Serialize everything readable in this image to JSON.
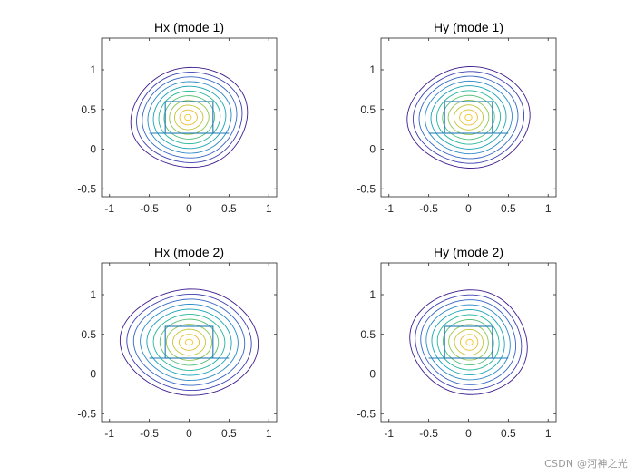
{
  "watermark": "CSDN @河神之光",
  "colors": {
    "axis": "#262626",
    "geometry": "#1f77b4",
    "levels": [
      "#3d1c8c",
      "#3b3fb0",
      "#3566c4",
      "#2a88c8",
      "#1aa3b8",
      "#21b59a",
      "#54c077",
      "#8fc650",
      "#c4c43a",
      "#e8bd2e",
      "#f2c92a"
    ]
  },
  "chart_data": [
    {
      "type": "contour",
      "title": "Hx (mode 1)",
      "xlim": [
        -1.1,
        1.1
      ],
      "ylim": [
        -0.6,
        1.4
      ],
      "xticks": [
        -1,
        -0.5,
        0,
        0.5,
        1
      ],
      "yticks": [
        -0.5,
        0,
        0.5,
        1
      ],
      "xtick_labels": [
        "-1",
        "-0.5",
        "0",
        "0.5",
        "1"
      ],
      "ytick_labels": [
        "-0.5",
        "0",
        "0.5",
        "1"
      ],
      "center": [
        0,
        0.4
      ],
      "outer_radius_x": 0.73,
      "outer_radius_y": 0.63,
      "levels": 11,
      "core_tilt": 0.12,
      "waveguide": {
        "substrate_y": 0.2,
        "substrate_x": [
          -0.5,
          0.5
        ],
        "core_x": [
          -0.3,
          0.3
        ],
        "core_y": [
          0.2,
          0.6
        ]
      }
    },
    {
      "type": "contour",
      "title": "Hy (mode 1)",
      "xlim": [
        -1.1,
        1.1
      ],
      "ylim": [
        -0.6,
        1.4
      ],
      "xticks": [
        -1,
        -0.5,
        0,
        0.5,
        1
      ],
      "yticks": [
        -0.5,
        0,
        0.5,
        1
      ],
      "xtick_labels": [
        "-1",
        "-0.5",
        "0",
        "0.5",
        "1"
      ],
      "ytick_labels": [
        "-0.5",
        "0",
        "0.5",
        "1"
      ],
      "center": [
        0,
        0.4
      ],
      "outer_radius_x": 0.74,
      "outer_radius_y": 0.64,
      "levels": 11,
      "core_tilt": 0.0,
      "waveguide": {
        "substrate_y": 0.2,
        "substrate_x": [
          -0.5,
          0.5
        ],
        "core_x": [
          -0.3,
          0.3
        ],
        "core_y": [
          0.2,
          0.6
        ]
      }
    },
    {
      "type": "contour",
      "title": "Hx (mode 2)",
      "xlim": [
        -1.1,
        1.1
      ],
      "ylim": [
        -0.6,
        1.4
      ],
      "xticks": [
        -1,
        -0.5,
        0,
        0.5,
        1
      ],
      "yticks": [
        -0.5,
        0,
        0.5,
        1
      ],
      "xtick_labels": [
        "-1",
        "-0.5",
        "0",
        "0.5",
        "1"
      ],
      "ytick_labels": [
        "-0.5",
        "0",
        "0.5",
        "1"
      ],
      "center": [
        0,
        0.4
      ],
      "outer_radius_x": 0.83,
      "outer_radius_y": 0.67,
      "levels": 11,
      "core_tilt": 0.0,
      "waveguide": {
        "substrate_y": 0.2,
        "substrate_x": [
          -0.5,
          0.5
        ],
        "core_x": [
          -0.3,
          0.3
        ],
        "core_y": [
          0.2,
          0.6
        ]
      }
    },
    {
      "type": "contour",
      "title": "Hy (mode 2)",
      "xlim": [
        -1.1,
        1.1
      ],
      "ylim": [
        -0.6,
        1.4
      ],
      "xticks": [
        -1,
        -0.5,
        0,
        0.5,
        1
      ],
      "yticks": [
        -0.5,
        0,
        0.5,
        1
      ],
      "xtick_labels": [
        "-1",
        "-0.5",
        "0",
        "0.5",
        "1"
      ],
      "ytick_labels": [
        "-0.5",
        "0",
        "0.5",
        "1"
      ],
      "center": [
        0,
        0.4
      ],
      "outer_radius_x": 0.73,
      "outer_radius_y": 0.66,
      "levels": 11,
      "core_tilt": -0.1,
      "waveguide": {
        "substrate_y": 0.2,
        "substrate_x": [
          -0.5,
          0.5
        ],
        "core_x": [
          -0.3,
          0.3
        ],
        "core_y": [
          0.2,
          0.6
        ]
      }
    }
  ]
}
